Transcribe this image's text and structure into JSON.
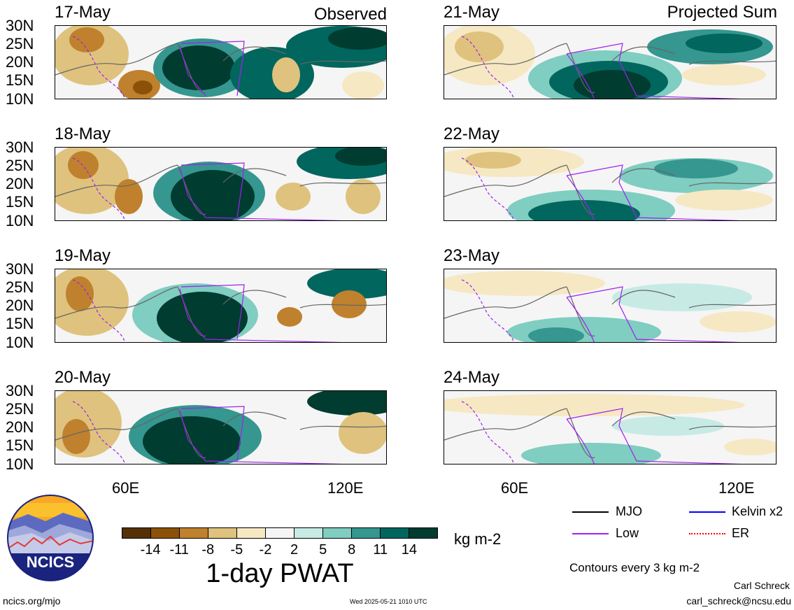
{
  "observed_label": "Observed",
  "projected_label": "Projected Sum",
  "panels_observed": [
    "17-May",
    "18-May",
    "19-May",
    "20-May"
  ],
  "panels_projected": [
    "21-May",
    "22-May",
    "23-May",
    "24-May"
  ],
  "lat_labels": [
    "30N",
    "25N",
    "20N",
    "15N",
    "10N"
  ],
  "lon_labels": [
    "60E",
    "120E"
  ],
  "colorbar": {
    "ticks": [
      "-14",
      "-11",
      "-8",
      "-5",
      "-2",
      "2",
      "5",
      "8",
      "11",
      "14"
    ],
    "colors": [
      "#543005",
      "#8c5109",
      "#bf812d",
      "#dfc27d",
      "#f6e8c3",
      "#f5f5f5",
      "#c7eae5",
      "#80cdc1",
      "#35978f",
      "#01665e",
      "#003c30"
    ],
    "units": "kg m-2",
    "title": "1-day PWAT"
  },
  "legend": {
    "mjo": "MJO",
    "kelvin": "Kelvin x2",
    "low": "Low",
    "er": "ER",
    "mjo_color": "#000000",
    "kelvin_color": "#0000ff",
    "low_color": "#a020f0",
    "er_color": "#ff0000"
  },
  "contours_note": "Contours every 3 kg m-2",
  "author_name": "Carl Schreck",
  "author_email": "carl_schreck@ncsu.edu",
  "site_url": "ncics.org/mjo",
  "timestamp": "Wed 2025-05-21 1010 UTC",
  "logo_text": "NCICS"
}
